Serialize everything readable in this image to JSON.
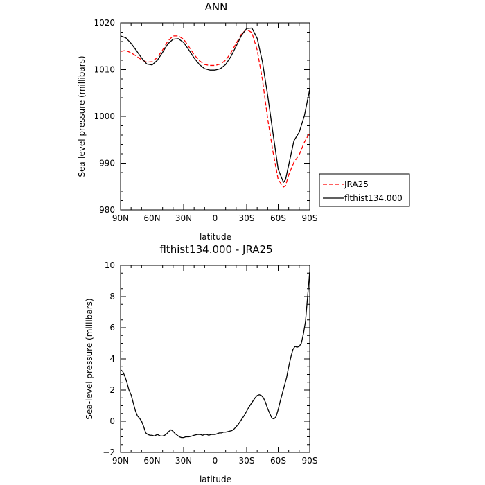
{
  "chart_data": [
    {
      "type": "line",
      "title": "ANN",
      "xlabel": "latitude",
      "ylabel": "Sea-level pressure (millibars)",
      "xlim": [
        90,
        -90
      ],
      "ylim": [
        980,
        1020
      ],
      "x_ticks": [
        90,
        60,
        30,
        0,
        -30,
        -60,
        -90
      ],
      "x_tick_labels": [
        "90N",
        "60N",
        "30N",
        "0",
        "30S",
        "60S",
        "90S"
      ],
      "y_ticks": [
        980,
        990,
        1000,
        1010,
        1020
      ],
      "y_tick_labels": [
        "980",
        "990",
        "1000",
        "1010",
        "1020"
      ],
      "legend_position": "right",
      "series": [
        {
          "name": "JRA25",
          "color": "#ff0000",
          "dash": "dashed",
          "x": [
            90,
            85,
            80,
            75,
            70,
            65,
            60,
            55,
            50,
            45,
            40,
            35,
            30,
            25,
            20,
            15,
            10,
            5,
            0,
            -5,
            -10,
            -15,
            -20,
            -25,
            -30,
            -35,
            -40,
            -45,
            -50,
            -55,
            -60,
            -65,
            -67,
            -70,
            -75,
            -80,
            -85,
            -90
          ],
          "y": [
            1013.9,
            1014.1,
            1013.6,
            1012.9,
            1012.1,
            1011.6,
            1011.7,
            1012.6,
            1014.2,
            1016.1,
            1017.2,
            1017.2,
            1016.5,
            1014.9,
            1013.2,
            1011.9,
            1011.1,
            1010.9,
            1010.9,
            1011.2,
            1012.0,
            1013.6,
            1015.6,
            1017.6,
            1018.6,
            1017.9,
            1014.2,
            1007.9,
            999.5,
            992.5,
            986.5,
            984.9,
            985.2,
            987.5,
            990.2,
            991.8,
            994.5,
            996.5
          ]
        },
        {
          "name": "flthist134.000",
          "color": "#000000",
          "dash": "solid",
          "x": [
            90,
            85,
            80,
            75,
            70,
            65,
            60,
            55,
            50,
            45,
            40,
            35,
            30,
            25,
            20,
            15,
            10,
            5,
            0,
            -5,
            -10,
            -15,
            -20,
            -25,
            -30,
            -35,
            -40,
            -45,
            -50,
            -55,
            -60,
            -65,
            -67,
            -70,
            -75,
            -80,
            -85,
            -90
          ],
          "y": [
            1017.2,
            1016.8,
            1015.6,
            1014.1,
            1012.5,
            1011.2,
            1011.0,
            1012.0,
            1013.7,
            1015.5,
            1016.5,
            1016.6,
            1015.8,
            1014.2,
            1012.5,
            1011.1,
            1010.2,
            1009.9,
            1009.9,
            1010.2,
            1011.1,
            1012.8,
            1015.0,
            1017.3,
            1018.8,
            1018.9,
            1016.7,
            1011.7,
            1004.5,
            996.5,
            988.7,
            985.9,
            986.5,
            989.6,
            994.8,
            996.6,
            1000.2,
            1005.8
          ]
        }
      ]
    },
    {
      "type": "line",
      "title": "flthist134.000 - JRA25",
      "xlabel": "latitude",
      "ylabel": "Sea-level pressure (millibars)",
      "xlim": [
        90,
        -90
      ],
      "ylim": [
        -2,
        10
      ],
      "x_ticks": [
        90,
        60,
        30,
        0,
        -30,
        -60,
        -90
      ],
      "x_tick_labels": [
        "90N",
        "60N",
        "30N",
        "0",
        "30S",
        "60S",
        "90S"
      ],
      "y_ticks": [
        -2,
        0,
        2,
        4,
        6,
        8,
        10
      ],
      "y_tick_labels": [
        "−2",
        "0",
        "2",
        "4",
        "6",
        "8",
        "10"
      ],
      "series": [
        {
          "color": "#000000",
          "dash": "solid",
          "x": [
            90,
            88,
            86,
            84,
            82,
            80,
            78,
            76,
            74,
            72,
            70,
            68,
            66,
            64,
            62,
            60,
            58,
            55,
            52,
            50,
            48,
            46,
            44,
            42,
            40,
            38,
            36,
            34,
            32,
            30,
            28,
            25,
            22,
            20,
            17,
            14,
            12,
            10,
            8,
            6,
            4,
            2,
            0,
            -2,
            -4,
            -6,
            -8,
            -10,
            -13,
            -16,
            -18,
            -20,
            -22,
            -24,
            -26,
            -28,
            -30,
            -32,
            -34,
            -36,
            -38,
            -40,
            -42,
            -44,
            -46,
            -48,
            -50,
            -52,
            -54,
            -56,
            -58,
            -60,
            -62,
            -64,
            -66,
            -68,
            -70,
            -72,
            -74,
            -76,
            -78,
            -80,
            -82,
            -84,
            -86,
            -88,
            -90
          ],
          "y": [
            3.3,
            3.2,
            2.9,
            2.5,
            2.0,
            1.7,
            1.2,
            0.7,
            0.35,
            0.2,
            0.0,
            -0.35,
            -0.75,
            -0.85,
            -0.9,
            -0.9,
            -0.95,
            -0.85,
            -0.95,
            -0.95,
            -0.9,
            -0.8,
            -0.65,
            -0.55,
            -0.65,
            -0.8,
            -0.9,
            -1.0,
            -1.05,
            -1.05,
            -1.0,
            -1.0,
            -0.95,
            -0.9,
            -0.85,
            -0.85,
            -0.9,
            -0.85,
            -0.85,
            -0.9,
            -0.85,
            -0.85,
            -0.85,
            -0.8,
            -0.75,
            -0.75,
            -0.7,
            -0.7,
            -0.65,
            -0.6,
            -0.5,
            -0.35,
            -0.2,
            0.0,
            0.2,
            0.4,
            0.65,
            0.9,
            1.1,
            1.3,
            1.5,
            1.65,
            1.7,
            1.65,
            1.5,
            1.2,
            0.8,
            0.5,
            0.2,
            0.15,
            0.3,
            0.75,
            1.3,
            1.8,
            2.3,
            2.8,
            3.5,
            4.1,
            4.6,
            4.8,
            4.75,
            4.8,
            5.0,
            5.6,
            6.4,
            8.0,
            9.6
          ]
        }
      ]
    }
  ]
}
